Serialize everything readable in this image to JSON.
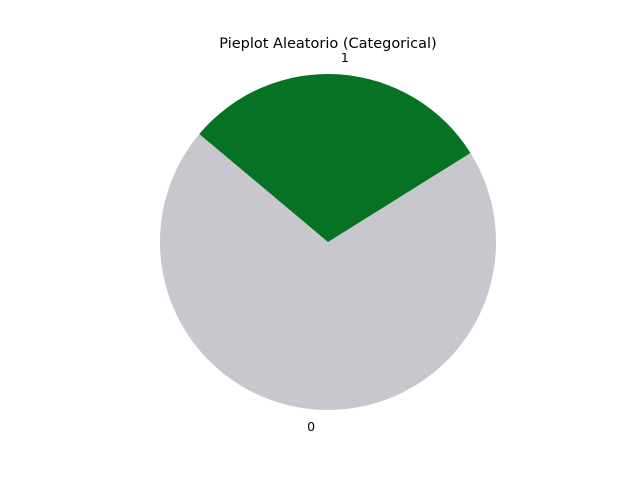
{
  "chart_data": {
    "type": "pie",
    "title": "Pieplot Aleatorio (Categorical)",
    "categories": [
      "0",
      "1"
    ],
    "values": [
      70,
      30
    ],
    "colors": [
      "#c8c7cd",
      "#057323"
    ],
    "start_angle_deg": 140,
    "direction": "counterclockwise",
    "legend": "none"
  }
}
